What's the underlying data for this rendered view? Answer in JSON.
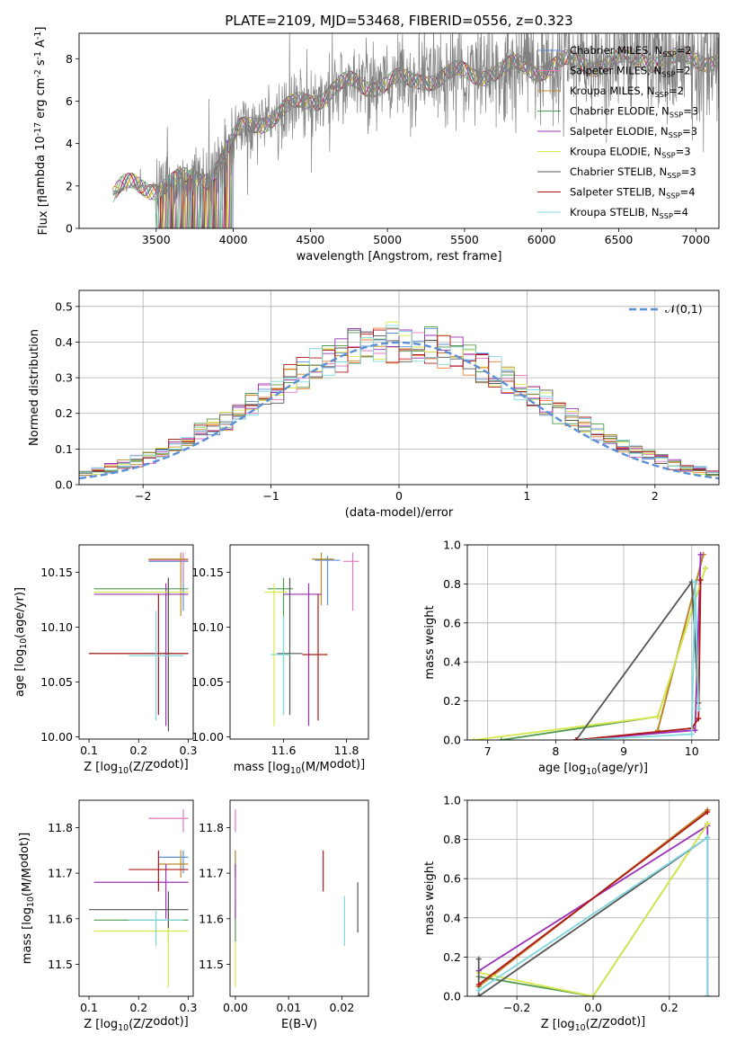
{
  "figure": {
    "title": "PLATE=2109, MJD=53468, FIBERID=0556, z=0.323"
  },
  "series_names": [
    "Chabrier MILES, N$_{SSP}$=2",
    "Salpeter MILES, N$_{SSP}$=2",
    "Kroupa MILES, N$_{SSP}$=2",
    "Chabrier ELODIE, N$_{SSP}$=3",
    "Salpeter ELODIE, N$_{SSP}$=3",
    "Kroupa ELODIE, N$_{SSP}$=3",
    "Chabrier STELIB, N$_{SSP}$=3",
    "Salpeter STELIB, N$_{SSP}$=4",
    "Kroupa STELIB, N$_{SSP}$=4"
  ],
  "colors": {
    "data": "#808080",
    "series": [
      "#5b8fd6",
      "#e377c2",
      "#c08a2a",
      "#4f9a4f",
      "#9b30b8",
      "#d8e84a",
      "#555555",
      "#b01818",
      "#7fd8e0"
    ],
    "orange": "#f07a2a",
    "normal": "#5b8fd6",
    "grid": "#b0b0b0"
  },
  "chart_data": [
    {
      "id": "spectrum",
      "type": "line",
      "title": "PLATE=2109, MJD=53468, FIBERID=0556, z=0.323",
      "xlabel": "wavelength [Angstrom, rest frame]",
      "ylabel": "Flux [$f_\\lambda 10^{-17}$ erg cm$^{-2}$ s$^{-1}$ A$^{-1}$]",
      "xlim": [
        3000,
        7150
      ],
      "ylim": [
        0,
        9.2
      ],
      "xticks": [
        3500,
        4000,
        4500,
        5000,
        5500,
        6000,
        6500,
        7000
      ],
      "yticks": [
        0,
        2,
        4,
        6,
        8
      ],
      "grid": false,
      "legend": "upper right",
      "continuum": {
        "x": [
          3220,
          3280,
          3350,
          3450,
          3550,
          3650,
          3750,
          3850,
          3950,
          4050,
          4150,
          4250,
          4350,
          4450,
          4550,
          4650,
          4750,
          4850,
          4950,
          5050,
          5150,
          5250,
          5350,
          5450,
          5550,
          5650,
          5750,
          5850,
          5950,
          6050,
          6150,
          6250,
          6350,
          6450,
          6550,
          6650,
          6750,
          6850,
          7000,
          7150
        ],
        "y": [
          1.6,
          1.9,
          2.0,
          1.95,
          2.1,
          2.2,
          2.3,
          2.5,
          3.6,
          4.6,
          5.0,
          5.3,
          5.6,
          5.9,
          6.2,
          6.6,
          6.8,
          6.7,
          6.9,
          7.0,
          6.8,
          7.1,
          7.2,
          7.3,
          7.2,
          7.4,
          7.5,
          7.6,
          7.5,
          7.7,
          7.8,
          7.7,
          7.8,
          7.9,
          7.9,
          8.0,
          8.0,
          7.9,
          8.0,
          8.0
        ]
      }
    },
    {
      "id": "residuals",
      "type": "histogram",
      "xlabel": "(data-model)/error",
      "ylabel": "Normed distribution",
      "xlim": [
        -2.5,
        2.5
      ],
      "ylim": [
        0,
        0.545
      ],
      "xticks": [
        -2,
        -1,
        0,
        1,
        2
      ],
      "yticks": [
        0.0,
        0.1,
        0.2,
        0.3,
        0.4,
        0.5
      ],
      "grid": true,
      "legend": "upper right",
      "reference": {
        "name": "$\\mathcal{N}(0,1)$",
        "mean": 0,
        "sigma": 1
      },
      "bin_width": 0.1,
      "bin_start": -2.5
    },
    {
      "id": "age-vs-Z",
      "type": "scatter",
      "xlabel": "Z [log$_{10}(Z/Z_\\odot)$]",
      "ylabel": "age  [log$_{10}(age/yr)$]",
      "xlim": [
        0.08,
        0.31
      ],
      "ylim": [
        9.998,
        10.175
      ],
      "xticks": [
        0.1,
        0.2,
        0.3
      ],
      "yticks": [
        10.0,
        10.05,
        10.1,
        10.15
      ],
      "grid": false,
      "points": [
        {
          "s": 0,
          "x": 0.29,
          "y": 10.16,
          "xerr": [
            0.22,
            0.3
          ],
          "yerr": [
            10.115,
            10.165
          ]
        },
        {
          "s": 1,
          "x": 0.29,
          "y": 10.161,
          "xerr": [
            0.22,
            0.3
          ],
          "yerr": [
            10.14,
            10.168
          ]
        },
        {
          "s": 2,
          "x": 0.285,
          "y": 10.162,
          "xerr": [
            0.22,
            0.3
          ],
          "yerr": [
            10.11,
            10.168
          ]
        },
        {
          "s": 3,
          "x": 0.26,
          "y": 10.135,
          "xerr": [
            0.11,
            0.3
          ],
          "yerr": [
            10.015,
            10.145
          ]
        },
        {
          "s": 4,
          "x": 0.255,
          "y": 10.13,
          "xerr": [
            0.11,
            0.3
          ],
          "yerr": [
            10.01,
            10.14
          ]
        },
        {
          "s": 5,
          "x": 0.26,
          "y": 10.132,
          "xerr": [
            0.11,
            0.3
          ],
          "yerr": [
            10.02,
            10.14
          ]
        },
        {
          "s": 6,
          "x": 0.26,
          "y": 10.076,
          "xerr": [
            0.1,
            0.3
          ],
          "yerr": [
            10.005,
            10.145
          ]
        },
        {
          "s": 7,
          "x": 0.24,
          "y": 10.076,
          "xerr": [
            0.1,
            0.3
          ],
          "yerr": [
            10.02,
            10.13
          ]
        },
        {
          "s": 8,
          "x": 0.235,
          "y": 10.074,
          "xerr": [
            0.18,
            0.29
          ],
          "yerr": [
            10.015,
            10.115
          ]
        }
      ]
    },
    {
      "id": "age-vs-mass",
      "type": "scatter",
      "xlabel": "mass [log$_{10}(M/M_\\odot)$]",
      "ylabel": "",
      "xlim": [
        11.43,
        11.87
      ],
      "ylim": [
        9.998,
        10.175
      ],
      "xticks": [
        11.6,
        11.8
      ],
      "yticks": [
        10.0,
        10.05,
        10.1,
        10.15
      ],
      "grid": false,
      "points": [
        {
          "s": 0,
          "x": 11.74,
          "y": 10.161,
          "xerr": [
            11.7,
            11.78
          ],
          "yerr": [
            10.12,
            10.165
          ]
        },
        {
          "s": 1,
          "x": 11.82,
          "y": 10.16,
          "xerr": [
            11.79,
            11.84
          ],
          "yerr": [
            10.115,
            10.168
          ]
        },
        {
          "s": 2,
          "x": 11.72,
          "y": 10.162,
          "xerr": [
            11.69,
            11.76
          ],
          "yerr": [
            10.12,
            10.168
          ]
        },
        {
          "s": 3,
          "x": 11.6,
          "y": 10.135,
          "xerr": [
            11.55,
            11.63
          ],
          "yerr": [
            10.02,
            10.145
          ]
        },
        {
          "s": 4,
          "x": 11.68,
          "y": 10.13,
          "xerr": [
            11.6,
            11.72
          ],
          "yerr": [
            10.01,
            10.14
          ]
        },
        {
          "s": 5,
          "x": 11.57,
          "y": 10.132,
          "xerr": [
            11.54,
            11.61
          ],
          "yerr": [
            10.01,
            10.14
          ]
        },
        {
          "s": 6,
          "x": 11.62,
          "y": 10.076,
          "xerr": [
            11.58,
            11.66
          ],
          "yerr": [
            10.02,
            10.145
          ]
        },
        {
          "s": 7,
          "x": 11.71,
          "y": 10.075,
          "xerr": [
            11.66,
            11.74
          ],
          "yerr": [
            10.015,
            10.13
          ]
        },
        {
          "s": 8,
          "x": 11.6,
          "y": 10.075,
          "xerr": [
            11.56,
            11.62
          ],
          "yerr": [
            10.02,
            10.11
          ]
        }
      ]
    },
    {
      "id": "mass-weight-vs-age",
      "type": "line",
      "xlabel": "age  [log$_{10}(age/yr)$]",
      "ylabel": "mass weight",
      "xlim": [
        6.7,
        10.4
      ],
      "ylim": [
        0,
        1.0
      ],
      "xticks": [
        7,
        8,
        9,
        10
      ],
      "yticks": [
        0.0,
        0.2,
        0.4,
        0.6,
        0.8,
        1.0
      ],
      "grid": true,
      "series": [
        {
          "s": 0,
          "x": [
            9.5,
            10.17
          ],
          "y": [
            0.05,
            0.95
          ]
        },
        {
          "s": 1,
          "x": [
            9.5,
            10.17
          ],
          "y": [
            0.05,
            0.95
          ]
        },
        {
          "s": 2,
          "x": [
            9.5,
            10.17
          ],
          "y": [
            0.05,
            0.95
          ]
        },
        {
          "s": 3,
          "x": [
            7.2,
            9.5,
            10.2
          ],
          "y": [
            0.0,
            0.12,
            0.88
          ]
        },
        {
          "s": 4,
          "x": [
            8.3,
            10.05,
            10.13
          ],
          "y": [
            0.0,
            0.05,
            0.95
          ]
        },
        {
          "s": 5,
          "x": [
            6.8,
            9.5,
            10.2
          ],
          "y": [
            0.0,
            0.12,
            0.88
          ]
        },
        {
          "s": 6,
          "x": [
            8.3,
            10.0,
            10.1
          ],
          "y": [
            0.0,
            0.81,
            0.19
          ]
        },
        {
          "s": 7,
          "x": [
            8.3,
            10.0,
            10.1,
            10.13
          ],
          "y": [
            0.0,
            0.06,
            0.11,
            0.82
          ]
        },
        {
          "s": 8,
          "x": [
            8.4,
            10.0,
            10.05,
            10.1
          ],
          "y": [
            0.0,
            0.03,
            0.81,
            0.16
          ]
        }
      ]
    },
    {
      "id": "mass-vs-Z",
      "type": "scatter",
      "xlabel": "Z [log$_{10}(Z/Z_\\odot)$]",
      "ylabel": "mass [log$_{10}(M/M_\\odot)$]",
      "xlim": [
        0.08,
        0.31
      ],
      "ylim": [
        11.43,
        11.86
      ],
      "xticks": [
        0.1,
        0.2,
        0.3
      ],
      "yticks": [
        11.5,
        11.6,
        11.7,
        11.8
      ],
      "grid": false,
      "points": [
        {
          "s": 0,
          "x": 0.29,
          "y": 11.735,
          "xerr": [
            0.24,
            0.3
          ],
          "yerr": [
            11.7,
            11.75
          ]
        },
        {
          "s": 1,
          "x": 0.29,
          "y": 11.82,
          "xerr": [
            0.22,
            0.3
          ],
          "yerr": [
            11.79,
            11.84
          ]
        },
        {
          "s": 2,
          "x": 0.285,
          "y": 11.72,
          "xerr": [
            0.24,
            0.3
          ],
          "yerr": [
            11.69,
            11.75
          ]
        },
        {
          "s": 3,
          "x": 0.26,
          "y": 11.597,
          "xerr": [
            0.11,
            0.3
          ],
          "yerr": [
            11.55,
            11.63
          ]
        },
        {
          "s": 4,
          "x": 0.255,
          "y": 11.68,
          "xerr": [
            0.11,
            0.3
          ],
          "yerr": [
            11.6,
            11.72
          ]
        },
        {
          "s": 5,
          "x": 0.26,
          "y": 11.573,
          "xerr": [
            0.11,
            0.3
          ],
          "yerr": [
            11.45,
            11.61
          ]
        },
        {
          "s": 6,
          "x": 0.26,
          "y": 11.62,
          "xerr": [
            0.1,
            0.3
          ],
          "yerr": [
            11.58,
            11.66
          ]
        },
        {
          "s": 7,
          "x": 0.24,
          "y": 11.708,
          "xerr": [
            0.18,
            0.3
          ],
          "yerr": [
            11.66,
            11.75
          ]
        },
        {
          "s": 8,
          "x": 0.235,
          "y": 11.597,
          "xerr": [
            0.18,
            0.29
          ],
          "yerr": [
            11.54,
            11.62
          ]
        }
      ]
    },
    {
      "id": "mass-vs-EBV",
      "type": "scatter",
      "xlabel": "E(B-V)",
      "ylabel": "",
      "xlim": [
        -0.001,
        0.025
      ],
      "ylim": [
        11.43,
        11.86
      ],
      "xticks": [
        0.0,
        0.01,
        0.02
      ],
      "yticks": [
        11.5,
        11.6,
        11.7,
        11.8
      ],
      "grid": false,
      "points": [
        {
          "s": 0,
          "x": 0.0,
          "y": 11.735,
          "yerr": [
            11.7,
            11.75
          ]
        },
        {
          "s": 1,
          "x": 0.0,
          "y": 11.82,
          "yerr": [
            11.79,
            11.84
          ]
        },
        {
          "s": 2,
          "x": 0.0,
          "y": 11.72,
          "yerr": [
            11.69,
            11.75
          ]
        },
        {
          "s": 3,
          "x": 0.0,
          "y": 11.597,
          "yerr": [
            11.55,
            11.63
          ]
        },
        {
          "s": 4,
          "x": 0.0,
          "y": 11.68,
          "yerr": [
            11.6,
            11.72
          ]
        },
        {
          "s": 5,
          "x": 0.0,
          "y": 11.5,
          "yerr": [
            11.45,
            11.55
          ]
        },
        {
          "s": 6,
          "x": 0.023,
          "y": 11.62,
          "yerr": [
            11.57,
            11.68
          ]
        },
        {
          "s": 7,
          "x": 0.0165,
          "y": 11.708,
          "yerr": [
            11.66,
            11.75
          ]
        },
        {
          "s": 8,
          "x": 0.0205,
          "y": 11.597,
          "yerr": [
            11.54,
            11.65
          ]
        }
      ]
    },
    {
      "id": "mass-weight-vs-Z",
      "type": "line",
      "xlabel": "Z [log$_{10}(Z/Z_\\odot)$]",
      "ylabel": "mass weight",
      "xlim": [
        -0.33,
        0.33
      ],
      "ylim": [
        0,
        1.0
      ],
      "xticks": [
        -0.2,
        0.0,
        0.2
      ],
      "yticks": [
        0.0,
        0.2,
        0.4,
        0.6,
        0.8,
        1.0
      ],
      "grid": true,
      "series": [
        {
          "s": 0,
          "x": [
            -0.3,
            0.3
          ],
          "y": [
            0.05,
            0.95
          ]
        },
        {
          "s": 1,
          "x": [
            -0.3,
            0.3
          ],
          "y": [
            0.05,
            0.95
          ]
        },
        {
          "s": 2,
          "x": [
            -0.3,
            0.3
          ],
          "y": [
            0.05,
            0.95
          ]
        },
        {
          "s": 3,
          "x": [
            -0.3,
            0.0,
            0.3
          ],
          "y": [
            0.1,
            0.0,
            0.88
          ]
        },
        {
          "s": 4,
          "x": [
            -0.3,
            0.3,
            0.3
          ],
          "y": [
            0.13,
            0.87,
            0.0
          ]
        },
        {
          "s": 5,
          "x": [
            -0.3,
            0.0,
            0.3
          ],
          "y": [
            0.12,
            0.0,
            0.88
          ]
        },
        {
          "s": 6,
          "x": [
            -0.3,
            -0.3,
            0.3
          ],
          "y": [
            0.19,
            0.0,
            0.81
          ]
        },
        {
          "s": 7,
          "x": [
            -0.3,
            0.3
          ],
          "y": [
            0.06,
            0.94
          ]
        },
        {
          "s": 8,
          "x": [
            -0.3,
            0.3,
            0.3
          ],
          "y": [
            0.03,
            0.81,
            0.0
          ]
        }
      ]
    }
  ]
}
